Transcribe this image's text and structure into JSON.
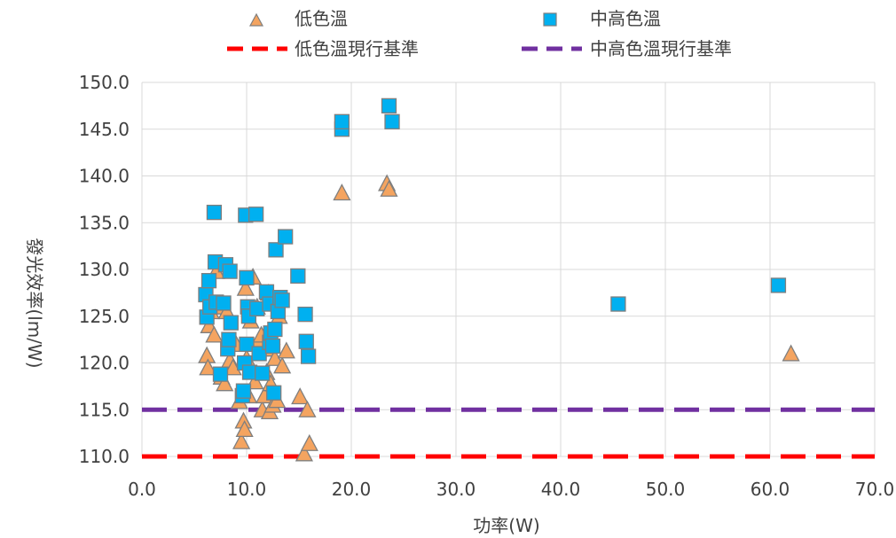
{
  "chart_data": {
    "type": "scatter",
    "xlabel": "功率(W)",
    "ylabel": "發光效率(lm/W)",
    "xlim": [
      0,
      70
    ],
    "ylim": [
      110,
      150
    ],
    "xticks": [
      "0.0",
      "10.0",
      "20.0",
      "30.0",
      "40.0",
      "50.0",
      "60.0",
      "70.0"
    ],
    "yticks": [
      "110.0",
      "115.0",
      "120.0",
      "125.0",
      "130.0",
      "135.0",
      "140.0",
      "145.0",
      "150.0"
    ],
    "grid": true,
    "legend_position": "top",
    "series": [
      {
        "name": "低色溫",
        "marker": "triangle",
        "color": "#F4A460",
        "edge": "#7F7F7F",
        "points": [
          [
            6.2,
            120.8
          ],
          [
            6.3,
            119.5
          ],
          [
            6.4,
            124.0
          ],
          [
            6.6,
            125.5
          ],
          [
            6.9,
            123.0
          ],
          [
            7.1,
            129.8
          ],
          [
            7.4,
            126.0
          ],
          [
            7.6,
            118.5
          ],
          [
            7.9,
            117.8
          ],
          [
            8.1,
            125.5
          ],
          [
            8.4,
            120.3
          ],
          [
            8.7,
            119.5
          ],
          [
            9.0,
            122.0
          ],
          [
            9.3,
            115.9
          ],
          [
            9.5,
            111.6
          ],
          [
            9.7,
            113.8
          ],
          [
            9.8,
            112.9
          ],
          [
            9.9,
            128.0
          ],
          [
            10.0,
            120.5
          ],
          [
            10.2,
            116.5
          ],
          [
            10.4,
            124.5
          ],
          [
            10.6,
            129.2
          ],
          [
            10.8,
            118.0
          ],
          [
            11.0,
            126.0
          ],
          [
            11.2,
            122.5
          ],
          [
            11.4,
            123.0
          ],
          [
            11.5,
            115.0
          ],
          [
            11.7,
            116.5
          ],
          [
            11.9,
            119.0
          ],
          [
            12.0,
            121.5
          ],
          [
            12.1,
            127.5
          ],
          [
            12.2,
            114.8
          ],
          [
            12.3,
            117.8
          ],
          [
            12.4,
            122.8
          ],
          [
            12.5,
            115.5
          ],
          [
            12.7,
            120.5
          ],
          [
            12.9,
            116.0
          ],
          [
            13.1,
            125.0
          ],
          [
            13.4,
            119.7
          ],
          [
            13.8,
            121.3
          ],
          [
            15.1,
            116.4
          ],
          [
            15.5,
            110.3
          ],
          [
            15.8,
            115.0
          ],
          [
            16.0,
            111.4
          ],
          [
            19.1,
            138.2
          ],
          [
            23.4,
            139.2
          ],
          [
            23.6,
            138.6
          ],
          [
            62.0,
            121.0
          ]
        ]
      },
      {
        "name": "中高色溫",
        "marker": "square",
        "color": "#00B0F0",
        "edge": "#7F7F7F",
        "points": [
          [
            6.1,
            127.3
          ],
          [
            6.2,
            124.9
          ],
          [
            6.4,
            128.8
          ],
          [
            6.5,
            126.0
          ],
          [
            6.9,
            136.1
          ],
          [
            7.0,
            130.8
          ],
          [
            7.1,
            126.5
          ],
          [
            7.5,
            118.8
          ],
          [
            7.8,
            126.4
          ],
          [
            8.0,
            130.5
          ],
          [
            8.2,
            121.5
          ],
          [
            8.3,
            122.5
          ],
          [
            8.4,
            129.8
          ],
          [
            8.5,
            124.3
          ],
          [
            9.6,
            116.5
          ],
          [
            9.7,
            117.0
          ],
          [
            9.8,
            120.0
          ],
          [
            9.9,
            135.8
          ],
          [
            10.0,
            122.0
          ],
          [
            10.0,
            129.1
          ],
          [
            10.1,
            126.0
          ],
          [
            10.2,
            125.0
          ],
          [
            10.3,
            119.0
          ],
          [
            10.9,
            135.9
          ],
          [
            11.0,
            125.8
          ],
          [
            11.2,
            121.0
          ],
          [
            11.5,
            118.9
          ],
          [
            11.9,
            127.6
          ],
          [
            12.2,
            126.3
          ],
          [
            12.2,
            122.2
          ],
          [
            12.3,
            123.2
          ],
          [
            12.5,
            121.8
          ],
          [
            12.6,
            116.8
          ],
          [
            12.7,
            123.6
          ],
          [
            12.8,
            132.1
          ],
          [
            13.0,
            125.5
          ],
          [
            13.2,
            127.0
          ],
          [
            13.4,
            126.7
          ],
          [
            13.7,
            133.5
          ],
          [
            14.9,
            129.3
          ],
          [
            15.6,
            125.2
          ],
          [
            15.7,
            122.3
          ],
          [
            15.9,
            120.7
          ],
          [
            19.1,
            145.0
          ],
          [
            19.1,
            145.8
          ],
          [
            23.6,
            147.5
          ],
          [
            23.9,
            145.8
          ],
          [
            45.5,
            126.3
          ],
          [
            60.8,
            128.3
          ]
        ]
      }
    ],
    "reference_lines": [
      {
        "name": "低色溫現行基準",
        "y": 110,
        "color": "#FF0000"
      },
      {
        "name": "中高色溫現行基準",
        "y": 115,
        "color": "#7030A0"
      }
    ]
  }
}
